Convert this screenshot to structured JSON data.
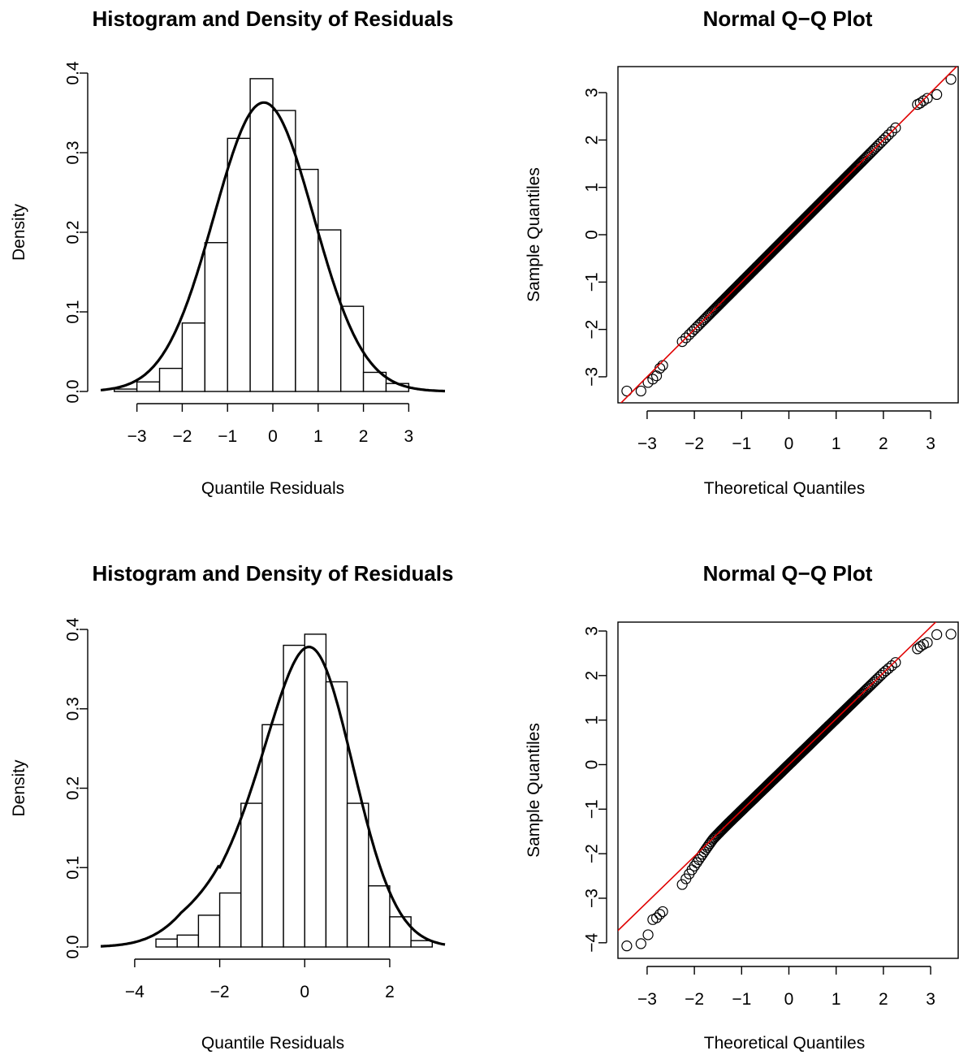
{
  "chart_data": [
    {
      "type": "bar",
      "title": "Histogram and Density of Residuals",
      "xlabel": "Quantile Residuals",
      "ylabel": "Density",
      "xlim": [
        -3.8,
        3.8
      ],
      "ylim": [
        0,
        0.4
      ],
      "xticks": [
        -3,
        -2,
        -1,
        0,
        1,
        2,
        3
      ],
      "yticks": [
        0.0,
        0.1,
        0.2,
        0.3,
        0.4
      ],
      "xtick_labels": [
        "−3",
        "−2",
        "−1",
        "0",
        "1",
        "2",
        "3"
      ],
      "ytick_labels": [
        "0.0",
        "0.1",
        "0.2",
        "0.3",
        "0.4"
      ],
      "bin_edges": [
        -3.5,
        -3,
        -2.5,
        -2,
        -1.5,
        -1,
        -0.5,
        0,
        0.5,
        1,
        1.5,
        2,
        2.5,
        3
      ],
      "values": [
        0.003,
        0.012,
        0.029,
        0.086,
        0.187,
        0.318,
        0.393,
        0.353,
        0.279,
        0.203,
        0.107,
        0.024,
        0.01
      ],
      "density_curve": {
        "mean": -0.2,
        "sd": 1.1,
        "peak": 0.363
      }
    },
    {
      "type": "scatter",
      "title": "Normal Q−Q Plot",
      "xlabel": "Theoretical Quantiles",
      "ylabel": "Sample Quantiles",
      "xlim": [
        -3.6,
        3.6
      ],
      "ylim": [
        -3.55,
        3.55
      ],
      "xticks": [
        -3,
        -2,
        -1,
        0,
        1,
        2,
        3
      ],
      "yticks": [
        -3,
        -2,
        -1,
        0,
        1,
        2,
        3
      ],
      "xtick_labels": [
        "−3",
        "−2",
        "−1",
        "0",
        "1",
        "2",
        "3"
      ],
      "ytick_labels": [
        "−3",
        "−2",
        "−1",
        "0",
        "1",
        "2",
        "3"
      ],
      "reference_line": {
        "intercept": 0.0,
        "slope": 1.0,
        "color": "#e00000"
      },
      "n_points": 3000,
      "tail_points": [
        {
          "x": -3.43,
          "y": -3.3
        },
        {
          "x": -3.13,
          "y": -3.3
        },
        {
          "x": -2.98,
          "y": -3.12
        },
        {
          "x": -2.88,
          "y": -3.05
        },
        {
          "x": -2.8,
          "y": -2.98
        },
        {
          "x": -2.73,
          "y": -2.82
        },
        {
          "x": -2.67,
          "y": -2.76
        },
        {
          "x": 2.72,
          "y": 2.75
        },
        {
          "x": 2.78,
          "y": 2.78
        },
        {
          "x": 2.85,
          "y": 2.83
        },
        {
          "x": 2.93,
          "y": 2.88
        },
        {
          "x": 3.13,
          "y": 2.96
        },
        {
          "x": 3.43,
          "y": 3.28
        }
      ]
    },
    {
      "type": "bar",
      "title": "Histogram and Density of Residuals",
      "xlabel": "Quantile Residuals",
      "ylabel": "Density",
      "xlim": [
        -4.8,
        3.3
      ],
      "ylim": [
        0,
        0.4
      ],
      "xticks": [
        -4,
        -2,
        0,
        2
      ],
      "yticks": [
        0.0,
        0.1,
        0.2,
        0.3,
        0.4
      ],
      "xtick_labels": [
        "−4",
        "−2",
        "0",
        "2"
      ],
      "ytick_labels": [
        "0.0",
        "0.1",
        "0.2",
        "0.3",
        "0.4"
      ],
      "bin_edges": [
        -3.5,
        -3,
        -2.5,
        -2,
        -1.5,
        -1,
        -0.5,
        0,
        0.5,
        1,
        1.5,
        2,
        2.5,
        3
      ],
      "values": [
        0.01,
        0.015,
        0.04,
        0.068,
        0.181,
        0.28,
        0.38,
        0.394,
        0.334,
        0.181,
        0.077,
        0.038,
        0.008
      ],
      "density_curve": {
        "mean": 0.1,
        "sd": 1.03,
        "peak": 0.378,
        "left_skew": true
      }
    },
    {
      "type": "scatter",
      "title": "Normal Q−Q Plot",
      "xlabel": "Theoretical Quantiles",
      "ylabel": "Sample Quantiles",
      "xlim": [
        -3.6,
        3.6
      ],
      "ylim": [
        -4.35,
        3.2
      ],
      "xticks": [
        -3,
        -2,
        -1,
        0,
        1,
        2,
        3
      ],
      "yticks": [
        -4,
        -3,
        -2,
        -1,
        0,
        1,
        2,
        3
      ],
      "xtick_labels": [
        "−3",
        "−2",
        "−1",
        "0",
        "1",
        "2",
        "3"
      ],
      "ytick_labels": [
        "−4",
        "−3",
        "−2",
        "−1",
        "0",
        "1",
        "2",
        "3"
      ],
      "reference_line": {
        "intercept": 0.0,
        "slope": 1.03,
        "color": "#e00000"
      },
      "n_points": 3000,
      "tail_points": [
        {
          "x": -3.43,
          "y": -4.07
        },
        {
          "x": -3.13,
          "y": -4.02
        },
        {
          "x": -2.98,
          "y": -3.82
        },
        {
          "x": -2.88,
          "y": -3.48
        },
        {
          "x": -2.8,
          "y": -3.44
        },
        {
          "x": -2.73,
          "y": -3.36
        },
        {
          "x": -2.67,
          "y": -3.3
        },
        {
          "x": 2.72,
          "y": 2.6
        },
        {
          "x": 2.78,
          "y": 2.65
        },
        {
          "x": 2.85,
          "y": 2.7
        },
        {
          "x": 2.93,
          "y": 2.74
        },
        {
          "x": 3.13,
          "y": 2.92
        },
        {
          "x": 3.43,
          "y": 2.93
        }
      ]
    }
  ]
}
